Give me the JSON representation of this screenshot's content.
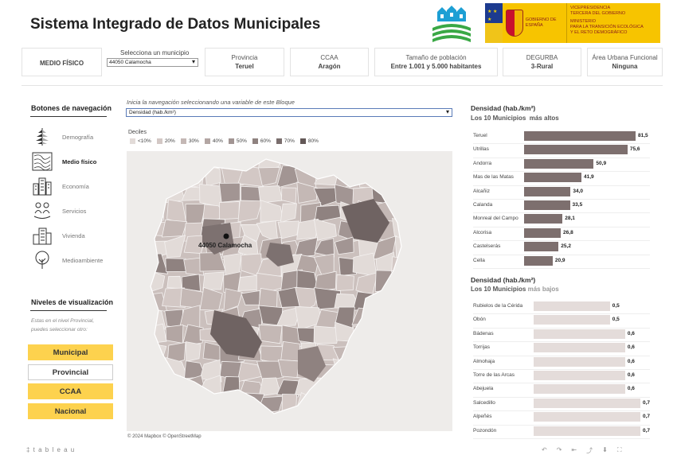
{
  "header": {
    "title": "Sistema Integrado de Datos Municipales",
    "gov_name": "GOBIERNO DE ESPAÑA",
    "ministry_lines": [
      "VICEPRESIDENCIA",
      "TERCERA DEL GOBIERNO",
      "MINISTERIO",
      "PARA LA TRANSICIÓN ECOLÓGICA",
      "Y EL RETO DEMOGRÁFICO"
    ]
  },
  "strip": {
    "block": "MEDIO FÍSICO",
    "muni_label": "Selecciona un municipio",
    "muni_value": "44050 Calamocha",
    "provincia_label": "Provincia",
    "provincia_value": "Teruel",
    "ccaa_label": "CCAA",
    "ccaa_value": "Aragón",
    "tam_label": "Tamaño de población",
    "tam_value": "Entre 1.001 y 5.000 habitantes",
    "degurba_label": "DEGURBA",
    "degurba_value": "3-Rural",
    "urbana_label": "Área Urbana Funcional",
    "urbana_value": "Ninguna"
  },
  "nav": {
    "title": "Botones de navegación",
    "items": [
      {
        "label": "Demografía",
        "icon": "demography-icon",
        "active": false
      },
      {
        "label": "Medio físico",
        "icon": "terrain-icon",
        "active": true
      },
      {
        "label": "Economía",
        "icon": "economy-icon",
        "active": false
      },
      {
        "label": "Servicios",
        "icon": "services-icon",
        "active": false
      },
      {
        "label": "Vivienda",
        "icon": "housing-icon",
        "active": false
      },
      {
        "label": "Medioambiente",
        "icon": "environment-icon",
        "active": false
      }
    ]
  },
  "levels": {
    "title": "Niveles de visualización",
    "note": "Estas en el nivel Provincial, puedes seleccionar otro:",
    "items": [
      {
        "label": "Municipal",
        "on": true
      },
      {
        "label": "Provincial",
        "on": false
      },
      {
        "label": "CCAA",
        "on": true
      },
      {
        "label": "Nacional",
        "on": true
      }
    ]
  },
  "map": {
    "hint": "Inicia la navegación seleccionando una variable de este Bloque",
    "variable": "Densidad (hab./km²)",
    "deciles_label": "Deciles",
    "legend": [
      {
        "label": "<10%",
        "color": "#e2dbd8"
      },
      {
        "label": "20%",
        "color": "#d3c8c5"
      },
      {
        "label": "30%",
        "color": "#c4b8b5"
      },
      {
        "label": "40%",
        "color": "#b3a6a3"
      },
      {
        "label": "50%",
        "color": "#a29593"
      },
      {
        "label": "60%",
        "color": "#8f8280"
      },
      {
        "label": "70%",
        "color": "#7a6e6d"
      },
      {
        "label": "80%",
        "color": "#635857"
      }
    ],
    "pin_label": "44050 Calamocha",
    "credit": "© 2024 Mapbox  © OpenStreetMap"
  },
  "chart_top": {
    "title": "Densidad (hab./km²)",
    "sub_a": "Los 10 Municipios",
    "sub_b": "más altos"
  },
  "chart_bottom": {
    "title": "Densidad (hab./km²)",
    "sub_a": "Los 10 Municipios",
    "sub_b": "más bajos"
  },
  "chart_data": [
    {
      "type": "bar",
      "title": "Densidad (hab./km²)",
      "subtitle": "Los 10 Municipios  más altos",
      "categories": [
        "Teruel",
        "Utrillas",
        "Andorra",
        "Mas de las Matas",
        "Alcañiz",
        "Calanda",
        "Monreal del Campo",
        "Alcorisa",
        "Castelserás",
        "Cella"
      ],
      "values": [
        81.5,
        75.6,
        50.9,
        41.9,
        34.0,
        33.5,
        28.1,
        26.8,
        25.2,
        20.9
      ],
      "labels": [
        "81,5",
        "75,6",
        "50,9",
        "41,9",
        "34,0",
        "33,5",
        "28,1",
        "26,8",
        "25,2",
        "20,9"
      ],
      "color": "#7d6f6e"
    },
    {
      "type": "bar",
      "title": "Densidad (hab./km²)",
      "subtitle": "Los 10 Municipios más bajos",
      "categories": [
        "Rubielos de la Cérida",
        "Obón",
        "Bádenas",
        "Torrijas",
        "Almohaja",
        "Torre de las Arcas",
        "Abejuela",
        "Salcedillo",
        "Alpeñés",
        "Pozondón"
      ],
      "values": [
        0.5,
        0.5,
        0.6,
        0.6,
        0.6,
        0.6,
        0.6,
        0.7,
        0.7,
        0.7
      ],
      "labels": [
        "0,5",
        "0,5",
        "0,6",
        "0,6",
        "0,6",
        "0,6",
        "0,6",
        "0,7",
        "0,7",
        "0,7"
      ],
      "color": "#e4dcda"
    }
  ],
  "footer": {
    "brand": "‡ t a b l e a u"
  }
}
